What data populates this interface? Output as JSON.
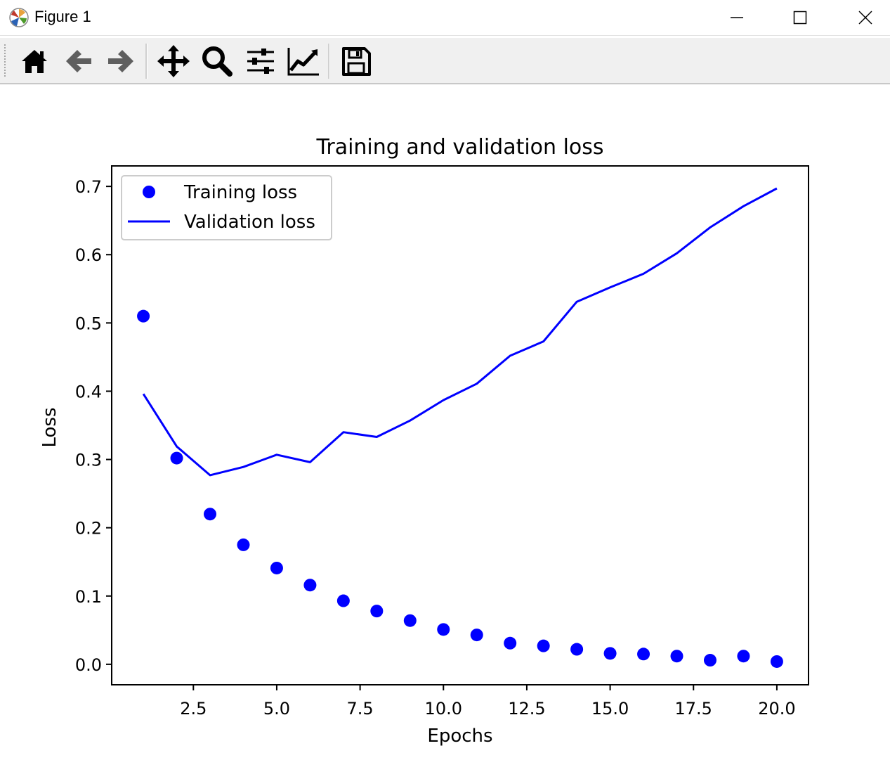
{
  "window": {
    "title": "Figure 1",
    "minimize_icon": "minimize-icon",
    "maximize_icon": "maximize-icon",
    "close_icon": "close-icon"
  },
  "toolbar": {
    "buttons": [
      {
        "icon": "home-icon"
      },
      {
        "icon": "back-arrow-icon"
      },
      {
        "icon": "forward-arrow-icon"
      },
      {
        "icon": "pan-icon"
      },
      {
        "icon": "zoom-icon"
      },
      {
        "icon": "configure-subplots-icon"
      },
      {
        "icon": "edit-axis-icon"
      },
      {
        "icon": "save-icon"
      }
    ]
  },
  "colors": {
    "series": "#0000ff",
    "axis": "#000000",
    "legend_border": "#cccccc"
  },
  "chart_data": {
    "type": "line",
    "title": "Training and validation loss",
    "xlabel": "Epochs",
    "ylabel": "Loss",
    "xlim": [
      0.05,
      20.95
    ],
    "ylim": [
      -0.03,
      0.73
    ],
    "xticks": [
      2.5,
      5.0,
      7.5,
      10.0,
      12.5,
      15.0,
      17.5,
      20.0
    ],
    "xtick_labels": [
      "2.5",
      "5.0",
      "7.5",
      "10.0",
      "12.5",
      "15.0",
      "17.5",
      "20.0"
    ],
    "yticks": [
      0.0,
      0.1,
      0.2,
      0.3,
      0.4,
      0.5,
      0.6,
      0.7
    ],
    "ytick_labels": [
      "0.0",
      "0.1",
      "0.2",
      "0.3",
      "0.4",
      "0.5",
      "0.6",
      "0.7"
    ],
    "grid": false,
    "legend_position": "upper-left",
    "x": [
      1,
      2,
      3,
      4,
      5,
      6,
      7,
      8,
      9,
      10,
      11,
      12,
      13,
      14,
      15,
      16,
      17,
      18,
      19,
      20
    ],
    "series": [
      {
        "name": "Training loss",
        "style": "dots",
        "values": [
          0.51,
          0.302,
          0.22,
          0.175,
          0.141,
          0.116,
          0.093,
          0.078,
          0.064,
          0.051,
          0.043,
          0.031,
          0.027,
          0.022,
          0.016,
          0.015,
          0.012,
          0.006,
          0.012,
          0.004
        ]
      },
      {
        "name": "Validation loss",
        "style": "line",
        "values": [
          0.396,
          0.319,
          0.277,
          0.289,
          0.307,
          0.296,
          0.34,
          0.333,
          0.357,
          0.387,
          0.411,
          0.452,
          0.473,
          0.531,
          0.552,
          0.572,
          0.602,
          0.64,
          0.671,
          0.697
        ]
      }
    ]
  }
}
